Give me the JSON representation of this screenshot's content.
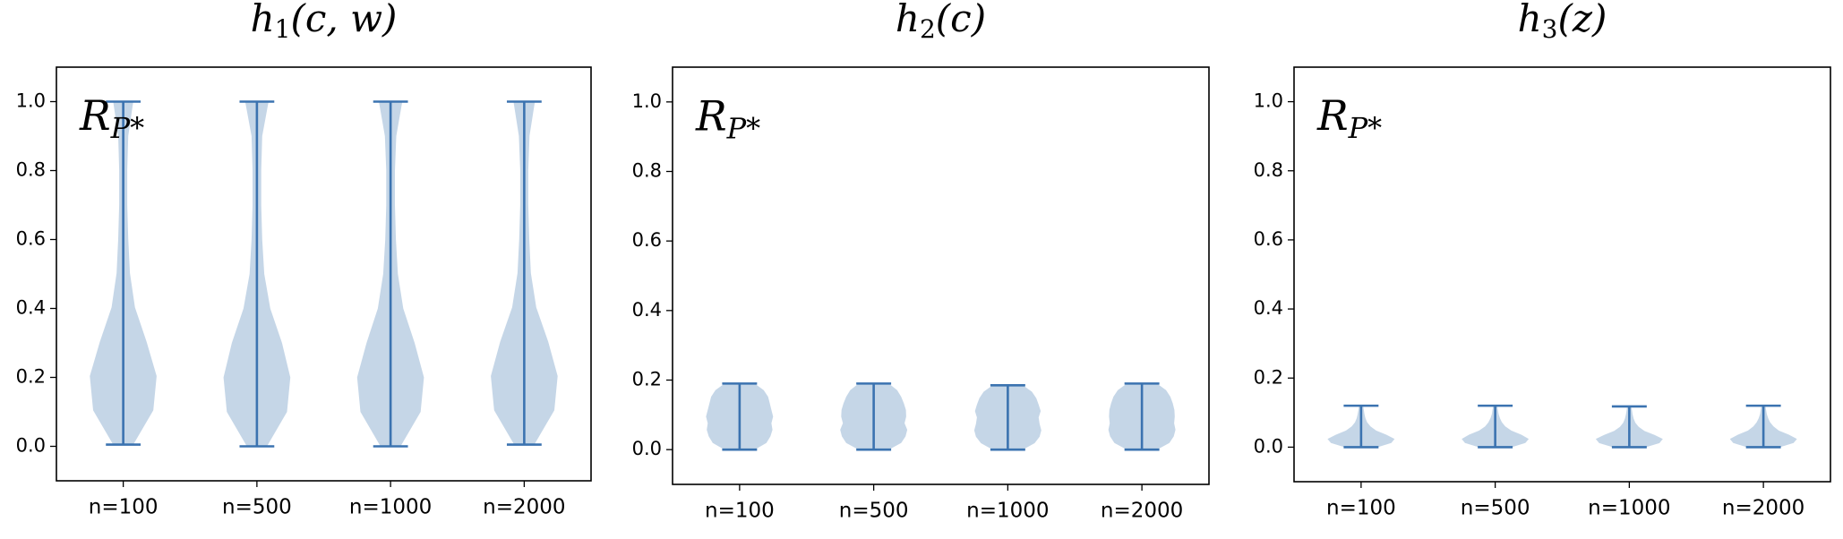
{
  "chart_data": [
    {
      "type": "violin",
      "title": {
        "base": "h",
        "sub": "1",
        "args": "(c, w)"
      },
      "annotation": {
        "base": "R",
        "sub": "P*"
      },
      "categories": [
        "n=100",
        "n=500",
        "n=1000",
        "n=2000"
      ],
      "color": "#3b73b0",
      "fill": "#c2d4e6",
      "violins": [
        {
          "min": 0.005,
          "max": 1.0,
          "profile": [
            0.3,
            0.9,
            1.0,
            0.7,
            0.35,
            0.2,
            0.15,
            0.12,
            0.12,
            0.15,
            0.3
          ]
        },
        {
          "min": 0.0,
          "max": 1.0,
          "profile": [
            0.3,
            0.9,
            1.0,
            0.75,
            0.4,
            0.22,
            0.16,
            0.13,
            0.13,
            0.16,
            0.35
          ]
        },
        {
          "min": 0.0,
          "max": 1.0,
          "profile": [
            0.3,
            0.9,
            1.0,
            0.72,
            0.38,
            0.22,
            0.16,
            0.13,
            0.13,
            0.17,
            0.35
          ]
        },
        {
          "min": 0.005,
          "max": 1.0,
          "profile": [
            0.3,
            0.9,
            1.0,
            0.72,
            0.36,
            0.2,
            0.15,
            0.12,
            0.12,
            0.16,
            0.32
          ]
        }
      ],
      "ylim": [
        -0.1,
        1.1
      ],
      "yticks": [
        {
          "value": 0,
          "label": "0.0"
        },
        {
          "value": 0.2,
          "label": "0.2"
        },
        {
          "value": 0.4,
          "label": "0.4"
        },
        {
          "value": 0.6,
          "label": "0.6"
        },
        {
          "value": 0.8,
          "label": "0.8"
        },
        {
          "value": 1,
          "label": "1.0"
        }
      ]
    },
    {
      "type": "violin",
      "title": {
        "base": "h",
        "sub": "2",
        "args": "(c)"
      },
      "annotation": {
        "base": "R",
        "sub": "P*"
      },
      "categories": [
        "n=100",
        "n=500",
        "n=1000",
        "n=2000"
      ],
      "color": "#3b73b0",
      "fill": "#c2d4e6",
      "violins": [
        {
          "min": 0.0,
          "max": 0.19,
          "profile": [
            0.45,
            0.8,
            0.92,
            0.98,
            0.95,
            1.0,
            0.95,
            0.9,
            0.85,
            0.72,
            0.45
          ]
        },
        {
          "min": 0.0,
          "max": 0.19,
          "profile": [
            0.45,
            0.82,
            0.95,
            1.0,
            0.92,
            0.97,
            0.96,
            0.9,
            0.82,
            0.7,
            0.45
          ]
        },
        {
          "min": 0.0,
          "max": 0.185,
          "profile": [
            0.45,
            0.8,
            0.95,
            1.0,
            0.95,
            0.92,
            0.98,
            0.92,
            0.85,
            0.72,
            0.45
          ]
        },
        {
          "min": 0.0,
          "max": 0.19,
          "profile": [
            0.45,
            0.82,
            0.95,
            1.0,
            0.96,
            0.98,
            0.97,
            0.92,
            0.85,
            0.72,
            0.45
          ]
        }
      ],
      "ylim": [
        -0.1,
        1.1
      ],
      "yticks": [
        {
          "value": 0,
          "label": "0.0"
        },
        {
          "value": 0.2,
          "label": "0.2"
        },
        {
          "value": 0.4,
          "label": "0.4"
        },
        {
          "value": 0.6,
          "label": "0.6"
        },
        {
          "value": 0.8,
          "label": "0.8"
        },
        {
          "value": 1,
          "label": "1.0"
        }
      ]
    },
    {
      "type": "violin",
      "title": {
        "base": "h",
        "sub": "3",
        "args": "(z)"
      },
      "annotation": {
        "base": "R",
        "sub": "P*"
      },
      "categories": [
        "n=100",
        "n=500",
        "n=1000",
        "n=2000"
      ],
      "color": "#3b73b0",
      "fill": "#c2d4e6",
      "violins": [
        {
          "min": 0.0,
          "max": 0.12,
          "profile": [
            0.5,
            0.9,
            1.0,
            0.75,
            0.45,
            0.28,
            0.18,
            0.13,
            0.1,
            0.08,
            0.06
          ]
        },
        {
          "min": 0.0,
          "max": 0.12,
          "profile": [
            0.5,
            0.9,
            1.0,
            0.78,
            0.48,
            0.3,
            0.2,
            0.14,
            0.1,
            0.08,
            0.06
          ]
        },
        {
          "min": 0.0,
          "max": 0.118,
          "profile": [
            0.5,
            0.9,
            1.0,
            0.75,
            0.45,
            0.28,
            0.18,
            0.13,
            0.1,
            0.08,
            0.06
          ]
        },
        {
          "min": 0.0,
          "max": 0.12,
          "profile": [
            0.5,
            0.9,
            1.0,
            0.76,
            0.46,
            0.3,
            0.2,
            0.14,
            0.1,
            0.08,
            0.06
          ]
        }
      ],
      "ylim": [
        -0.1,
        1.1
      ],
      "yticks": [
        {
          "value": 0,
          "label": "0.0"
        },
        {
          "value": 0.2,
          "label": "0.2"
        },
        {
          "value": 0.4,
          "label": "0.4"
        },
        {
          "value": 0.6,
          "label": "0.6"
        },
        {
          "value": 0.8,
          "label": "0.8"
        },
        {
          "value": 1,
          "label": "1.0"
        }
      ]
    }
  ]
}
